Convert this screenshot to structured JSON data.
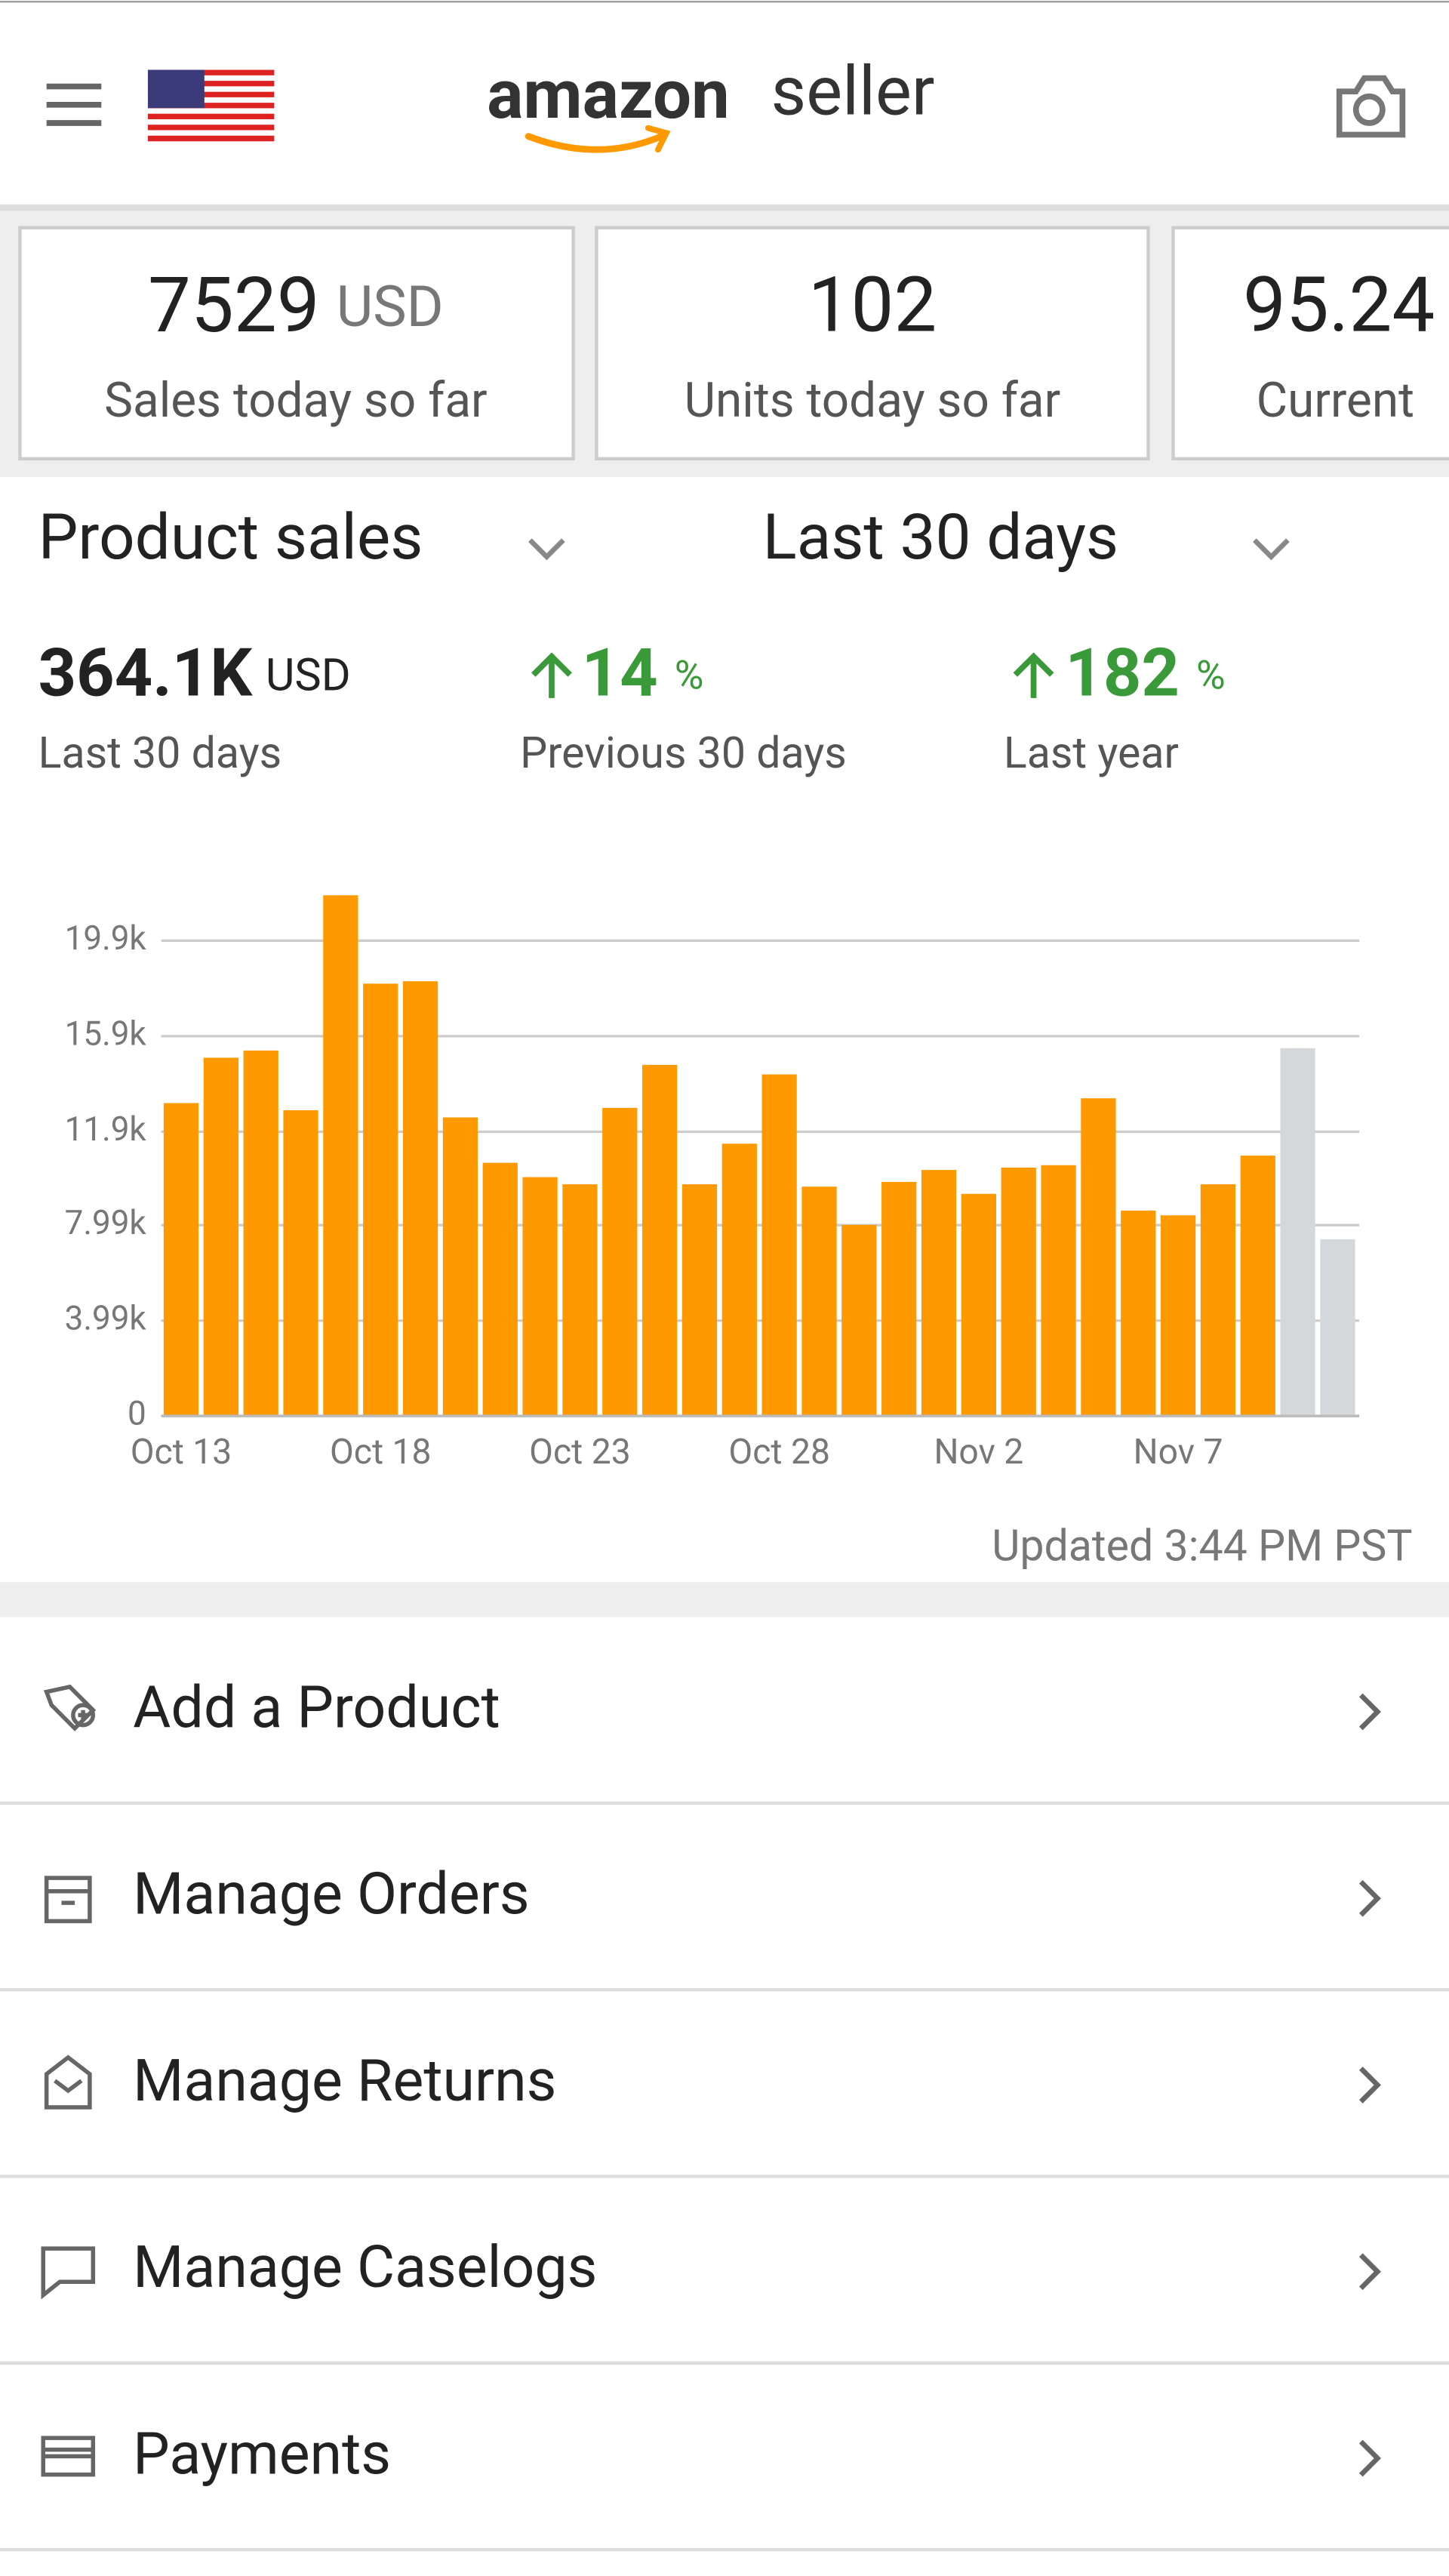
{
  "header": {
    "logo_brand": "amazon",
    "logo_product": "seller"
  },
  "kpis": [
    {
      "value": "7529",
      "unit": "USD",
      "label": "Sales today so far"
    },
    {
      "value": "102",
      "label": "Units today so far"
    },
    {
      "value": "95.24",
      "label": "Current"
    }
  ],
  "filters": {
    "metric": "Product sales",
    "period": "Last 30 days"
  },
  "stats": [
    {
      "value": "364.1K",
      "unit": "USD",
      "label": "Last 30 days"
    },
    {
      "value": "14",
      "unit": "%",
      "label": "Previous 30 days"
    },
    {
      "value": "182",
      "unit": "%",
      "label": "Last year"
    }
  ],
  "chart_data": {
    "type": "bar",
    "categories": [
      "Oct 13",
      null,
      null,
      null,
      null,
      "Oct 18",
      null,
      null,
      null,
      null,
      "Oct 23",
      null,
      null,
      null,
      null,
      "Oct 28",
      null,
      null,
      null,
      null,
      "Nov 2",
      null,
      null,
      null,
      null,
      "Nov 7",
      null,
      null,
      null,
      null
    ],
    "values": [
      13100,
      15000,
      15300,
      12800,
      21800,
      18100,
      18200,
      12500,
      10600,
      10000,
      9700,
      12900,
      14700,
      9700,
      11400,
      14300,
      9600,
      8000,
      9800,
      10300,
      9300,
      10400,
      10500,
      13300,
      8600,
      8400,
      9700,
      10900,
      15400,
      7400
    ],
    "colors": [
      "#ff9900",
      "#ff9900",
      "#ff9900",
      "#ff9900",
      "#ff9900",
      "#ff9900",
      "#ff9900",
      "#ff9900",
      "#ff9900",
      "#ff9900",
      "#ff9900",
      "#ff9900",
      "#ff9900",
      "#ff9900",
      "#ff9900",
      "#ff9900",
      "#ff9900",
      "#ff9900",
      "#ff9900",
      "#ff9900",
      "#ff9900",
      "#ff9900",
      "#ff9900",
      "#ff9900",
      "#ff9900",
      "#ff9900",
      "#ff9900",
      "#ff9900",
      "#d5d8da",
      "#d5d8da"
    ],
    "ylim": [
      0,
      22000
    ],
    "yticks": [
      0,
      {
        "value": 3990,
        "label": "3.99k"
      },
      {
        "value": 7990,
        "label": "7.99k"
      },
      {
        "value": 11900,
        "label": "11.9k"
      },
      {
        "value": 15900,
        "label": "15.9k"
      },
      {
        "value": 19900,
        "label": "19.9k"
      }
    ],
    "grid": true
  },
  "updated": "Updated 3:44 PM PST",
  "menu": [
    "Add a Product",
    "Manage Orders",
    "Manage Returns",
    "Manage Caselogs",
    "Payments"
  ]
}
